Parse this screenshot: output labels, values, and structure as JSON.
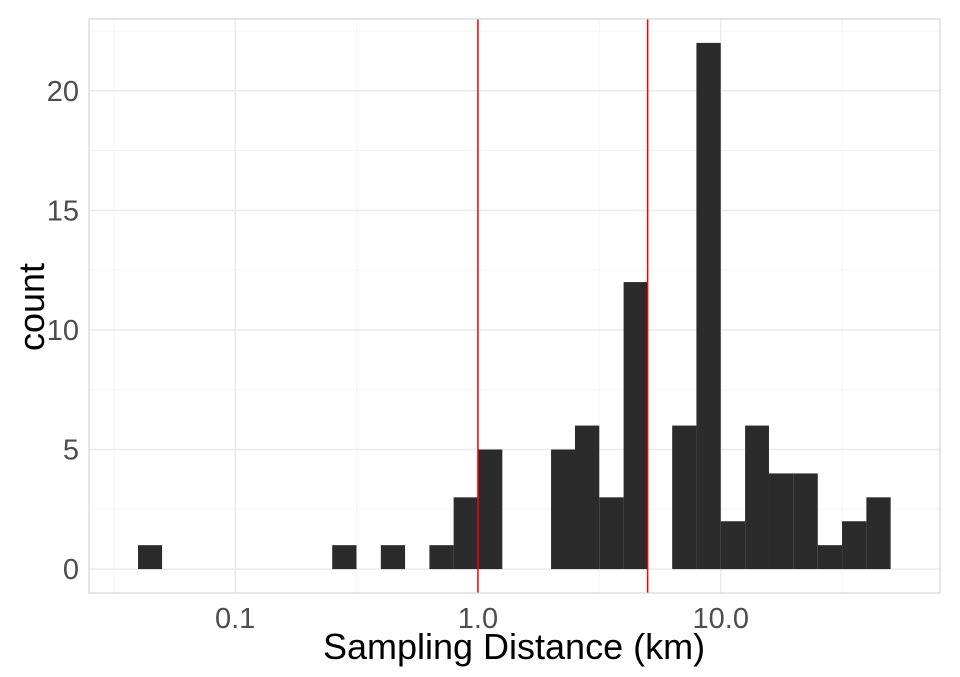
{
  "chart_data": {
    "type": "bar",
    "subtype": "histogram",
    "title": "",
    "xlabel": "Sampling Distance (km)",
    "ylabel": "count",
    "x_scale": "log10",
    "xlim": [
      0.025,
      80
    ],
    "ylim": [
      -1,
      23
    ],
    "x_ticks": [
      {
        "value": 0.1,
        "label": "0.1"
      },
      {
        "value": 1.0,
        "label": "1.0"
      },
      {
        "value": 10.0,
        "label": "10.0"
      }
    ],
    "y_ticks": [
      {
        "value": 0,
        "label": "0"
      },
      {
        "value": 5,
        "label": "5"
      },
      {
        "value": 10,
        "label": "10"
      },
      {
        "value": 15,
        "label": "15"
      },
      {
        "value": 20,
        "label": "20"
      }
    ],
    "bars": [
      {
        "x_min": 0.0398,
        "x_max": 0.05,
        "count": 1
      },
      {
        "x_min": 0.251,
        "x_max": 0.316,
        "count": 1
      },
      {
        "x_min": 0.398,
        "x_max": 0.501,
        "count": 1
      },
      {
        "x_min": 0.631,
        "x_max": 0.794,
        "count": 1
      },
      {
        "x_min": 0.794,
        "x_max": 1.0,
        "count": 3
      },
      {
        "x_min": 1.0,
        "x_max": 1.26,
        "count": 5
      },
      {
        "x_min": 2.0,
        "x_max": 2.51,
        "count": 5
      },
      {
        "x_min": 2.51,
        "x_max": 3.16,
        "count": 6
      },
      {
        "x_min": 3.16,
        "x_max": 3.98,
        "count": 3
      },
      {
        "x_min": 3.98,
        "x_max": 5.01,
        "count": 12
      },
      {
        "x_min": 6.31,
        "x_max": 7.94,
        "count": 6
      },
      {
        "x_min": 7.94,
        "x_max": 10.0,
        "count": 22
      },
      {
        "x_min": 10.0,
        "x_max": 12.6,
        "count": 2
      },
      {
        "x_min": 12.6,
        "x_max": 15.8,
        "count": 6
      },
      {
        "x_min": 15.8,
        "x_max": 20.0,
        "count": 4
      },
      {
        "x_min": 20.0,
        "x_max": 25.1,
        "count": 4
      },
      {
        "x_min": 25.1,
        "x_max": 31.6,
        "count": 1
      },
      {
        "x_min": 31.6,
        "x_max": 39.8,
        "count": 2
      },
      {
        "x_min": 39.8,
        "x_max": 50.1,
        "count": 3
      }
    ],
    "vlines": [
      {
        "x": 1.0,
        "color": "#ff0000"
      },
      {
        "x": 5.0,
        "color": "#ff0000"
      }
    ],
    "grid": true,
    "colors": {
      "bar_fill": "#2b2b2b",
      "grid_major": "#ebebeb",
      "grid_minor": "#f5f5f5",
      "panel_border": "#cccccc",
      "tick_text": "#4d4d4d",
      "axis_title": "#000000"
    }
  }
}
